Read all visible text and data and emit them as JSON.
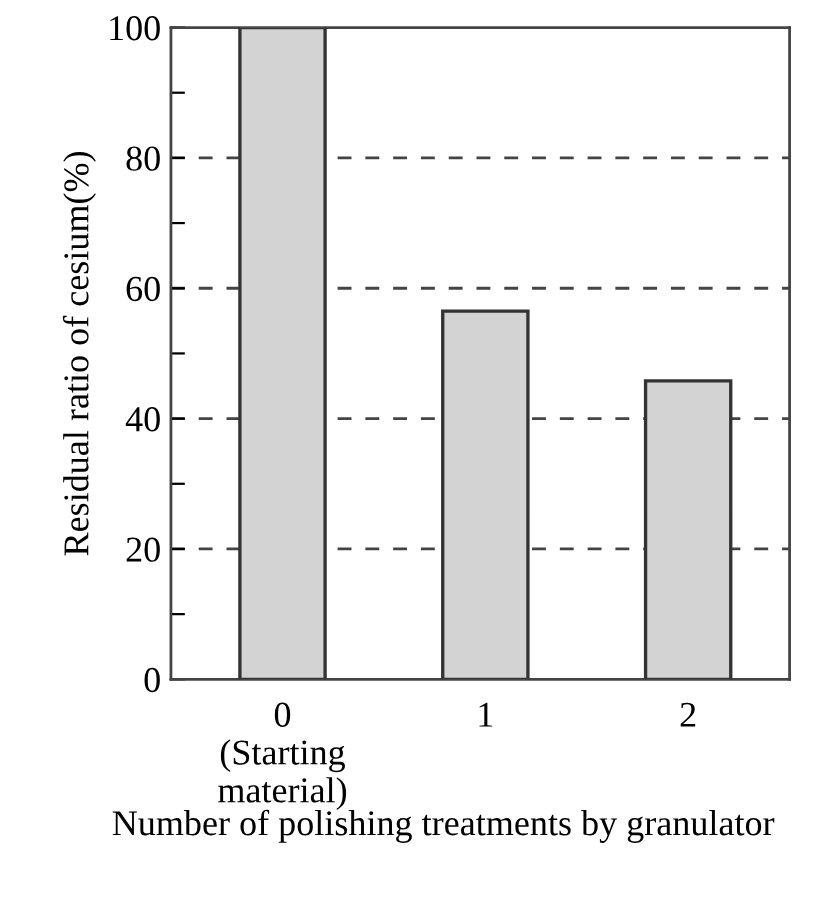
{
  "chart_data": {
    "type": "bar",
    "xlabel": "Number of polishing treatments by granulator",
    "ylabel": "Residual ratio of cesium(%)",
    "categories": [
      "0\n(Starting\nmaterial)",
      "1",
      "2"
    ],
    "values": [
      100,
      56.5,
      45.8
    ],
    "color": "#d3d3d3",
    "ylim": [
      0,
      100
    ],
    "yticks": [
      0,
      {
        "value": 10,
        "label": null
      },
      20,
      {
        "value": 30,
        "label": null
      },
      40,
      {
        "value": 50,
        "label": null
      },
      60,
      {
        "value": 70,
        "label": null
      },
      80,
      {
        "value": 90,
        "label": null
      },
      100
    ],
    "grid": "y",
    "line_style": "dashed"
  }
}
